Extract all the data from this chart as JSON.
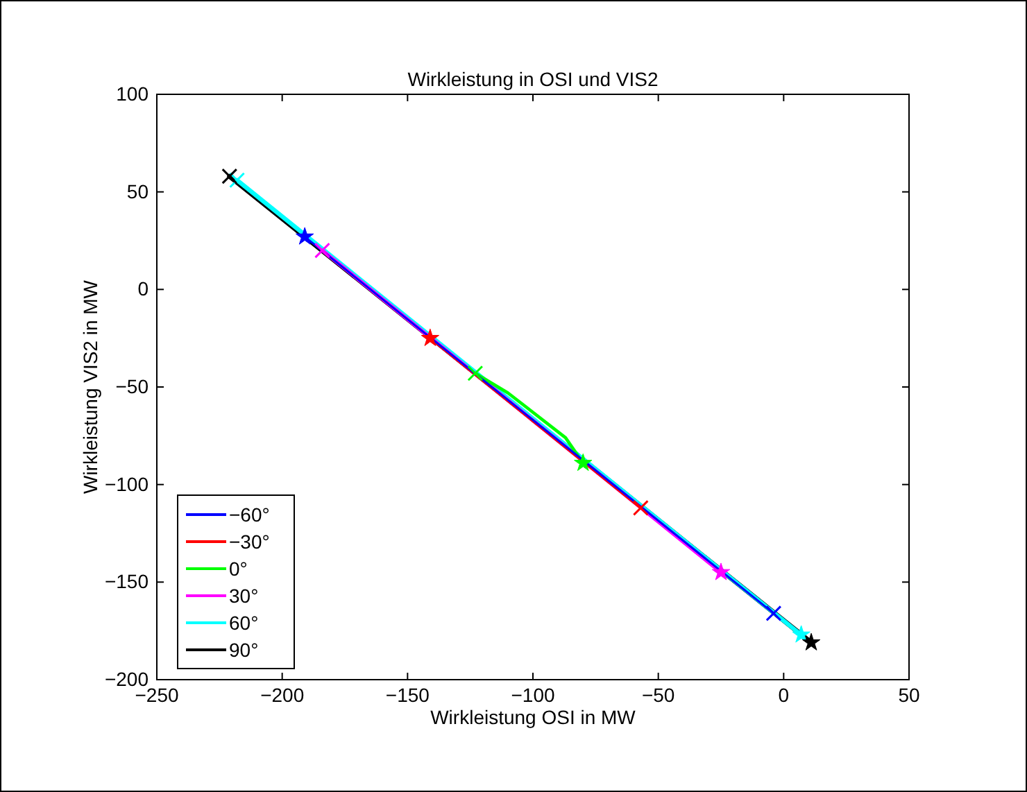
{
  "chart_data": {
    "type": "line",
    "title": "Wirkleistung in OSI und VIS2",
    "xlabel": "Wirkleistung OSI in MW",
    "ylabel": "Wirkleistung VIS2 in MW",
    "xlim": [
      -250,
      50
    ],
    "xticks": [
      -250,
      -200,
      -150,
      -100,
      -50,
      0,
      50
    ],
    "ylim": [
      -200,
      100
    ],
    "yticks": [
      -200,
      -150,
      -100,
      -50,
      0,
      50,
      100
    ],
    "grid": false,
    "legend": "bottom left",
    "marker": "none",
    "series": [
      {
        "name": "−60°",
        "color": "#0000ff",
        "x": [
          -4,
          -191
        ],
        "values": [
          -166,
          27
        ]
      },
      {
        "name": "−30°",
        "color": "#ff0000",
        "x": [
          -57,
          -141
        ],
        "values": [
          -112,
          -25
        ]
      },
      {
        "name": "0°",
        "color": "#00ff00",
        "x": [
          -123,
          -110,
          -87,
          -80
        ],
        "values": [
          -43,
          -53,
          -76,
          -89
        ]
      },
      {
        "name": "30°",
        "color": "#ff00ff",
        "x": [
          -184,
          -25
        ],
        "values": [
          20,
          -145
        ]
      },
      {
        "name": "60°",
        "color": "#00ffff",
        "x": [
          -218,
          7
        ],
        "values": [
          56,
          -177
        ]
      },
      {
        "name": "90°",
        "color": "#000000",
        "x": [
          -221,
          11
        ],
        "values": [
          58,
          -181
        ]
      },
      {
        "type": "scatter",
        "marker": "cross",
        "colors": [
          "#0000ff",
          "#ff0000",
          "#00ff00",
          "#ff00ff",
          "#00ffff",
          "#000000"
        ],
        "x": [
          -4,
          -57,
          -123,
          -184,
          -218,
          -221
        ],
        "values": [
          -166,
          -112,
          -43,
          20,
          56,
          58
        ]
      },
      {
        "type": "scatter",
        "marker": "star",
        "colors": [
          "#0000ff",
          "#ff0000",
          "#00ff00",
          "#ff00ff",
          "#00ffff",
          "#000000"
        ],
        "x": [
          -191,
          -141,
          -80,
          -25,
          7,
          11
        ],
        "values": [
          27,
          -25,
          -89,
          -145,
          -177,
          -181
        ]
      }
    ]
  }
}
